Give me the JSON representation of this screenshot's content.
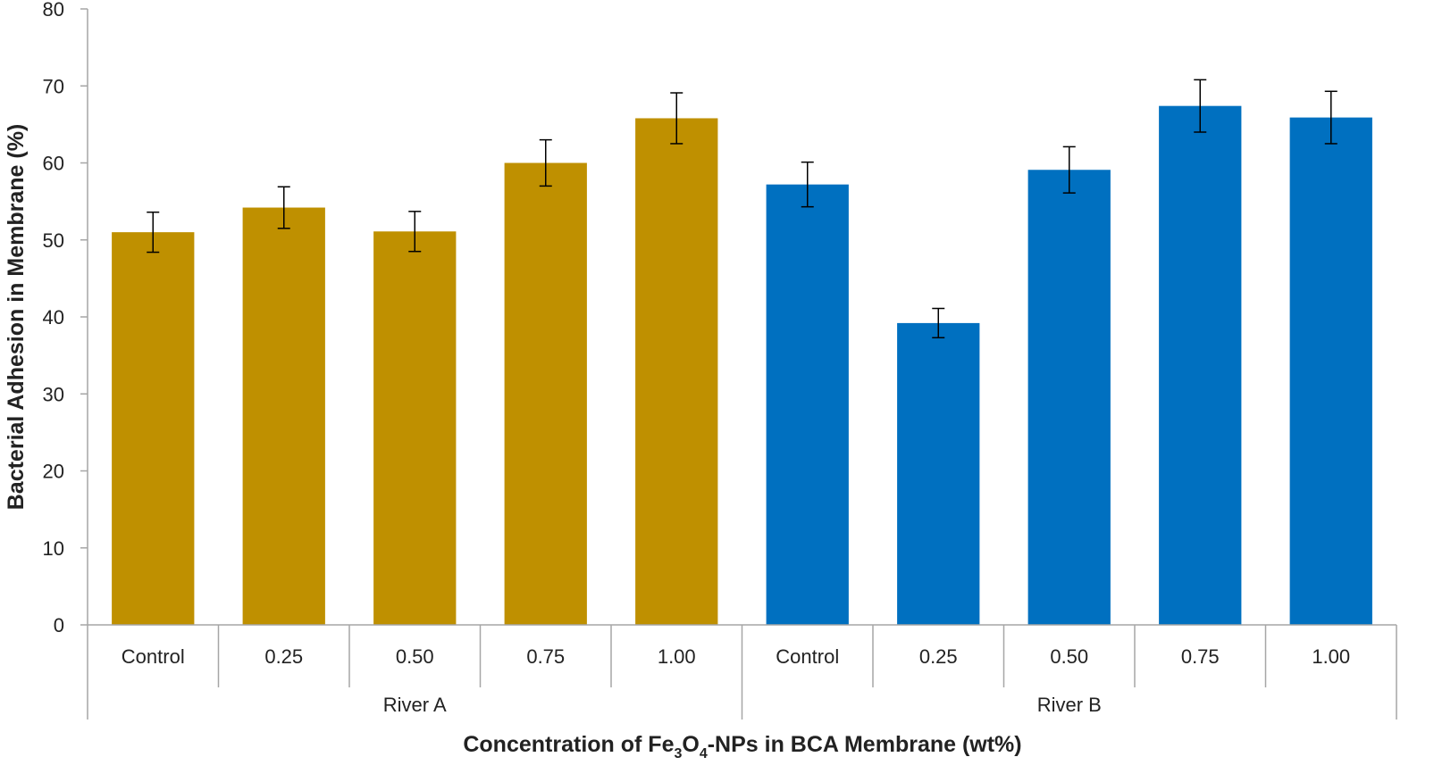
{
  "chart_data": {
    "type": "bar",
    "title": "",
    "ylabel": "Bacterial Adhesion in Membrane (%)",
    "xlabel": {
      "prefix": "Concentration of Fe",
      "sub1": "3",
      "mid": "O",
      "sub2": "4",
      "suffix": "-NPs in BCA Membrane (wt%)"
    },
    "ylim": [
      0,
      80
    ],
    "yticks": [
      "0",
      "10",
      "20",
      "30",
      "40",
      "50",
      "60",
      "70",
      "80"
    ],
    "grid": false,
    "legend": "none",
    "groups": [
      {
        "name": "River A",
        "color": "#BF9000",
        "categories": [
          "Control",
          "0.25",
          "0.50",
          "0.75",
          "1.00"
        ],
        "values": [
          51.0,
          54.2,
          51.1,
          60.0,
          65.8
        ],
        "errors": [
          2.6,
          2.7,
          2.6,
          3.0,
          3.3
        ]
      },
      {
        "name": "River B",
        "color": "#0070C0",
        "categories": [
          "Control",
          "0.25",
          "0.50",
          "0.75",
          "1.00"
        ],
        "values": [
          57.2,
          39.2,
          59.1,
          67.4,
          65.9
        ],
        "errors": [
          2.9,
          1.9,
          3.0,
          3.4,
          3.4
        ]
      }
    ]
  }
}
